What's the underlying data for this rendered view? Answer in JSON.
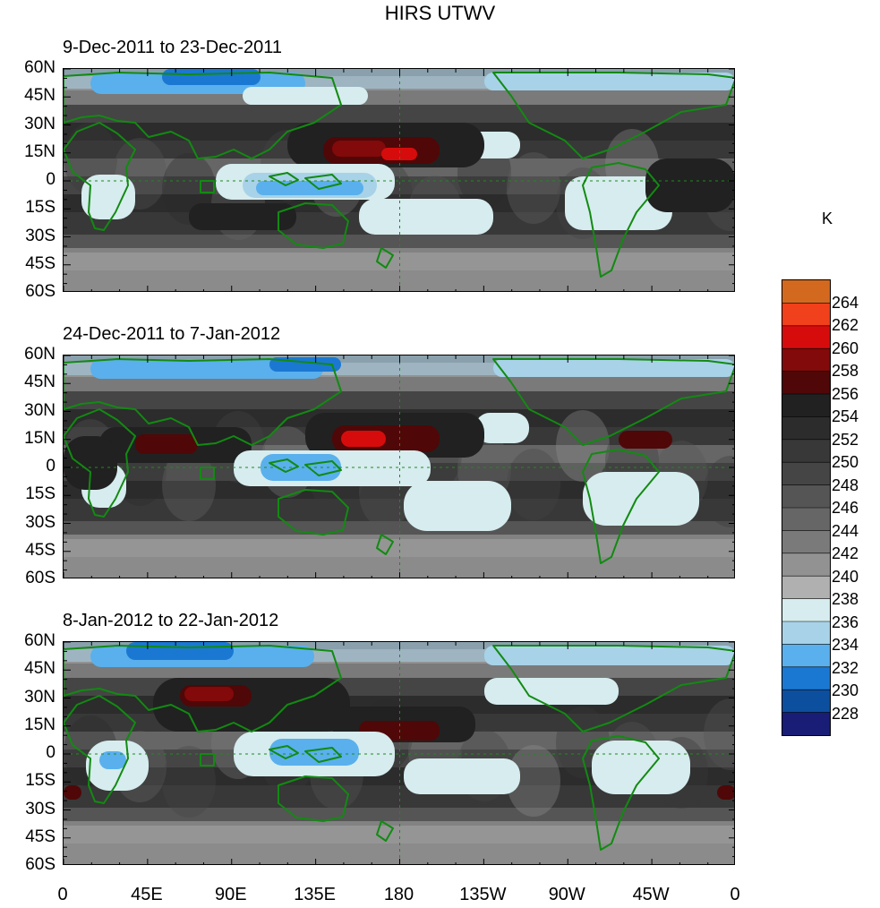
{
  "title": "HIRS UTWV",
  "colorbar": {
    "unit": "K",
    "labels": [
      "264",
      "262",
      "260",
      "258",
      "256",
      "254",
      "252",
      "250",
      "248",
      "246",
      "244",
      "242",
      "240",
      "238",
      "236",
      "234",
      "232",
      "230",
      "228"
    ],
    "colors": [
      "#d2691e",
      "#f0401c",
      "#d60c0c",
      "#820a0a",
      "#500707",
      "#212121",
      "#2c2c2c",
      "#383838",
      "#454545",
      "#555555",
      "#666666",
      "#7a7a7a",
      "#929292",
      "#b0b0b0",
      "#d6ecee",
      "#a8d2e8",
      "#5ab0ec",
      "#1b78d2",
      "#0c4f9e",
      "#1a1d76"
    ]
  },
  "axes": {
    "lat_labels": [
      "60N",
      "45N",
      "30N",
      "15N",
      "0",
      "15S",
      "30S",
      "45S",
      "60S"
    ],
    "lon_labels": [
      "0",
      "45E",
      "90E",
      "135E",
      "180",
      "135W",
      "90W",
      "45W",
      "0"
    ]
  },
  "panels": [
    {
      "period": "9-Dec-2011 to 23-Dec-2011"
    },
    {
      "period": "24-Dec-2011 to 7-Jan-2012"
    },
    {
      "period": "8-Jan-2012 to 22-Jan-2012"
    }
  ]
}
